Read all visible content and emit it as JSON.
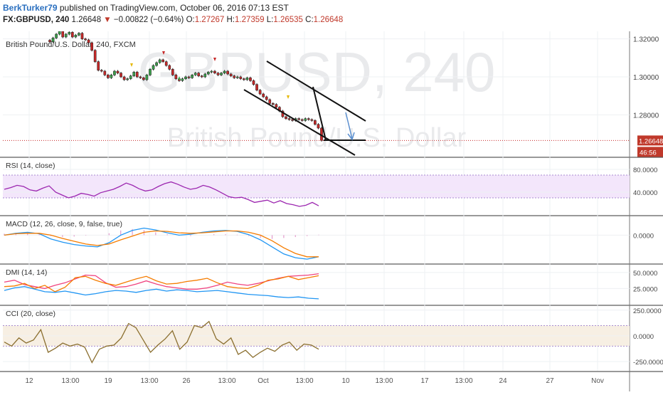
{
  "header": {
    "author": "BerkTurker79",
    "published_text": "published on TradingView.com, October 06, 2016 07:13 EST",
    "symbol": "FX:GBPUSD, 240",
    "last_price": "1.26648",
    "down_marker": "▼",
    "change": "−0.00822 (−0.64%)",
    "open_label": "O:",
    "open": "1.27267",
    "high_label": "H:",
    "high": "1.27359",
    "low_label": "L:",
    "low": "1.26535",
    "close_label": "C:",
    "close": "1.26648"
  },
  "chart_data": [
    {
      "type": "candlestick",
      "title": "British Pound/U.S. Dollar, 240, FXCM",
      "watermark_symbol": "GBPUSD, 240",
      "watermark_name": "British Pound/U.S. Dollar",
      "y_ticks": [
        "1.32000",
        "1.30000",
        "1.28000"
      ],
      "ylim": [
        1.258,
        1.324
      ],
      "price_label": "1.26648",
      "price_value": 1.26648,
      "countdown_label": "46:56",
      "closes": [
        1.3185,
        1.3205,
        1.3225,
        1.324,
        1.321,
        1.3225,
        1.3235,
        1.321,
        1.322,
        1.323,
        1.32,
        1.3195,
        1.318,
        1.314,
        1.308,
        1.3035,
        1.303,
        1.301,
        1.2995,
        1.301,
        1.303,
        1.302,
        1.3,
        1.2985,
        1.299,
        1.3005,
        1.3025,
        1.3,
        1.2995,
        1.2985,
        1.301,
        1.304,
        1.306,
        1.3075,
        1.309,
        1.308,
        1.306,
        1.304,
        1.301,
        1.299,
        1.298,
        1.299,
        1.3,
        1.2995,
        1.301,
        1.302,
        1.3005,
        1.3,
        1.3015,
        1.3025,
        1.303,
        1.302,
        1.301,
        1.302,
        1.303,
        1.3015,
        1.3005,
        1.2995,
        1.3,
        1.299,
        1.2985,
        1.2995,
        1.298,
        1.296,
        1.293,
        1.291,
        1.2895,
        1.288,
        1.286,
        1.2855,
        1.284,
        1.282,
        1.279,
        1.278,
        1.2775,
        1.277,
        1.278,
        1.2775,
        1.277,
        1.278,
        1.2775,
        1.277,
        1.275,
        1.273,
        1.2665
      ],
      "x_ticks": [
        "12",
        "13:00",
        "19",
        "13:00",
        "26",
        "13:00",
        "Oct",
        "13:00",
        "10",
        "13:00",
        "17",
        "13:00",
        "24",
        "27",
        "Nov"
      ],
      "channel_upper": [
        [
          "Sep 28",
          1.3055
        ],
        [
          "Oct 10",
          1.272
        ]
      ],
      "channel_lower": [
        [
          "Sep 29",
          1.2895
        ],
        [
          "Oct 10",
          1.255
        ]
      ],
      "target_line": 1.263
    },
    {
      "type": "line",
      "title": "RSI (14, close)",
      "y_ticks": [
        "80.0000",
        "40.0000"
      ],
      "ylim": [
        0,
        100
      ],
      "band": [
        30,
        70
      ],
      "series": [
        {
          "values": [
            45,
            48,
            52,
            50,
            44,
            42,
            47,
            51,
            40,
            35,
            30,
            33,
            38,
            36,
            33,
            39,
            42,
            45,
            50,
            56,
            52,
            46,
            42,
            44,
            50,
            55,
            58,
            54,
            49,
            45,
            47,
            52,
            49,
            44,
            38,
            32,
            30,
            31,
            27,
            22,
            24,
            26,
            21,
            25,
            20,
            18,
            15,
            17,
            22,
            16
          ]
        }
      ]
    },
    {
      "type": "line",
      "title": "MACD (12, 26, close, 9, false, true)",
      "y_ticks": [
        "0.0000"
      ],
      "ylim": [
        -0.006,
        0.004
      ],
      "series": [
        {
          "values": [
            0.0,
            0.0004,
            0.0006,
            0.0003,
            -0.0008,
            -0.0015,
            -0.002,
            -0.0023,
            -0.0025,
            -0.0016,
            0.0,
            0.001,
            0.0015,
            0.0011,
            0.0005,
            0.0,
            0.0002,
            0.0006,
            0.0009,
            0.001,
            0.0008,
            0.0001,
            -0.001,
            -0.0025,
            -0.004,
            -0.0048,
            -0.0051,
            -0.0046
          ]
        },
        {
          "values": [
            0.0,
            0.0003,
            0.0004,
            0.0004,
            0.0,
            -0.0007,
            -0.0013,
            -0.0019,
            -0.0022,
            -0.0019,
            -0.001,
            -0.0002,
            0.0006,
            0.0009,
            0.0008,
            0.0005,
            0.0004,
            0.0005,
            0.0007,
            0.0009,
            0.0009,
            0.0006,
            0.0,
            -0.0012,
            -0.0027,
            -0.0039,
            -0.0046,
            -0.0046
          ]
        }
      ],
      "histogram": [
        0.0003,
        0.0005,
        0.0006,
        0.0004,
        -0.0002,
        -0.0004,
        -0.0003,
        -0.0001,
        0.0,
        0.0004,
        0.001,
        0.0013,
        0.0011,
        0.0006,
        0.0002,
        -0.0001,
        -0.0002,
        0.0,
        0.0002,
        0.0002,
        0.0001,
        -0.0002,
        -0.0006,
        -0.0008,
        -0.0006,
        -0.0004,
        -0.0002,
        0.0001
      ]
    },
    {
      "type": "line",
      "title": "DMI (14, 14)",
      "y_ticks": [
        "50.0000",
        "25.0000"
      ],
      "ylim": [
        0,
        62
      ],
      "series": [
        {
          "values": [
            35,
            38,
            31,
            28,
            25,
            30,
            34,
            40,
            46,
            45,
            34,
            27,
            28,
            32,
            37,
            32,
            28,
            26,
            24,
            24,
            26,
            30,
            35,
            32,
            30,
            33,
            37,
            41,
            44,
            45,
            46,
            48
          ]
        },
        {
          "values": [
            28,
            29,
            33,
            25,
            30,
            20,
            27,
            42,
            44,
            38,
            33,
            30,
            35,
            40,
            44,
            37,
            32,
            33,
            36,
            38,
            41,
            34,
            28,
            26,
            25,
            30,
            38,
            40,
            44,
            39,
            42,
            45
          ]
        },
        {
          "values": [
            22,
            26,
            28,
            24,
            20,
            19,
            21,
            18,
            15,
            17,
            20,
            22,
            21,
            19,
            22,
            24,
            21,
            23,
            22,
            20,
            21,
            22,
            20,
            18,
            16,
            15,
            14,
            12,
            11,
            12,
            10,
            9
          ]
        }
      ]
    },
    {
      "type": "line",
      "title": "CCI (20, close)",
      "y_ticks": [
        "250.0000",
        "0.0000",
        "-250.0000"
      ],
      "ylim": [
        -340,
        290
      ],
      "band": [
        -100,
        100
      ],
      "series": [
        {
          "values": [
            -60,
            -100,
            -20,
            -70,
            -40,
            60,
            -160,
            -120,
            -70,
            -100,
            -80,
            -110,
            -260,
            -130,
            -100,
            -90,
            -20,
            120,
            80,
            -40,
            -160,
            -90,
            -30,
            50,
            -130,
            -60,
            100,
            80,
            140,
            -30,
            -80,
            -20,
            -180,
            -140,
            -210,
            -160,
            -120,
            -150,
            -90,
            -60,
            -140,
            -80,
            -90,
            -130
          ]
        }
      ]
    }
  ]
}
